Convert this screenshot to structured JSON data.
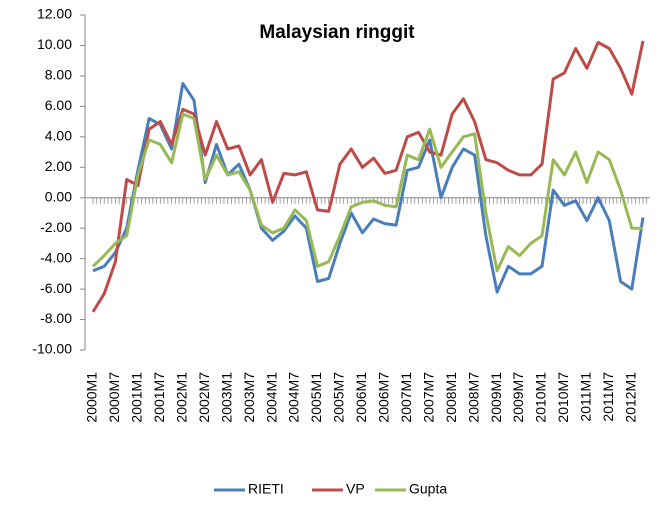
{
  "chart_data": {
    "type": "line",
    "title": "Malaysian ringgit",
    "categories": [
      "2000M1",
      null,
      "2000M7",
      null,
      "2001M1",
      null,
      "2001M7",
      null,
      "2002M1",
      null,
      "2002M7",
      null,
      "2003M1",
      null,
      "2003M7",
      null,
      "2004M1",
      null,
      "2004M7",
      null,
      "2005M1",
      null,
      "2005M7",
      null,
      "2006M1",
      null,
      "2006M7",
      null,
      "2007M1",
      null,
      "2007M7",
      null,
      "2008M1",
      null,
      "2008M7",
      null,
      "2009M1",
      null,
      "2009M7",
      null,
      "2010M1",
      null,
      "2010M7",
      null,
      "2011M1",
      null,
      "2011M7",
      null,
      "2012M1",
      null
    ],
    "series": [
      {
        "name": "RIETI",
        "color": "#4a7ebb",
        "values": [
          -4.8,
          -4.5,
          -3.6,
          -2.0,
          1.8,
          5.2,
          4.8,
          3.2,
          7.5,
          6.4,
          1.0,
          3.5,
          1.5,
          2.2,
          0.5,
          -2.0,
          -2.8,
          -2.2,
          -1.2,
          -2.0,
          -5.5,
          -5.3,
          -3.0,
          -1.0,
          -2.3,
          -1.4,
          -1.7,
          -1.8,
          1.8,
          2.0,
          3.8,
          0.0,
          2.0,
          3.2,
          2.8,
          -2.5,
          -6.2,
          -4.5,
          -5.0,
          -5.0,
          -4.5,
          0.5,
          -0.5,
          -0.2,
          -1.5,
          0.0,
          -1.5,
          -5.5,
          -6.0,
          -1.3
        ]
      },
      {
        "name": "VP",
        "color": "#be4b48",
        "values": [
          -7.5,
          -6.3,
          -4.2,
          1.2,
          0.8,
          4.5,
          5.0,
          3.5,
          5.8,
          5.5,
          2.8,
          5.0,
          3.2,
          3.4,
          1.5,
          2.5,
          -0.3,
          1.6,
          1.5,
          1.7,
          -0.8,
          -0.9,
          2.2,
          3.2,
          2.0,
          2.6,
          1.6,
          1.8,
          4.0,
          4.3,
          3.0,
          2.8,
          5.5,
          6.5,
          5.0,
          2.5,
          2.3,
          1.8,
          1.5,
          1.5,
          2.2,
          7.8,
          8.2,
          9.8,
          8.5,
          10.2,
          9.8,
          8.5,
          6.8,
          10.3
        ]
      },
      {
        "name": "Gupta",
        "color": "#98b954",
        "values": [
          -4.5,
          -3.8,
          -3.0,
          -2.5,
          1.5,
          3.8,
          3.5,
          2.3,
          5.5,
          5.2,
          1.2,
          2.8,
          1.5,
          1.7,
          0.5,
          -1.8,
          -2.3,
          -2.0,
          -0.8,
          -1.5,
          -4.5,
          -4.2,
          -2.5,
          -0.6,
          -0.3,
          -0.2,
          -0.5,
          -0.6,
          2.8,
          2.5,
          4.5,
          2.0,
          3.0,
          4.0,
          4.2,
          -1.0,
          -4.8,
          -3.2,
          -3.8,
          -3.0,
          -2.5,
          2.5,
          1.5,
          3.0,
          1.0,
          3.0,
          2.5,
          0.5,
          -2.0,
          -2.0
        ]
      }
    ],
    "ylim": [
      -10,
      12
    ],
    "yticks": [
      {
        "value": -10,
        "label": "-10.00"
      },
      {
        "value": -8,
        "label": "-8.00"
      },
      {
        "value": -6,
        "label": "-6.00"
      },
      {
        "value": -4,
        "label": "-4.00"
      },
      {
        "value": -2,
        "label": "-2.00"
      },
      {
        "value": 0,
        "label": "0.00"
      },
      {
        "value": 2,
        "label": "2.00"
      },
      {
        "value": 4,
        "label": "4.00"
      },
      {
        "value": 6,
        "label": "6.00"
      },
      {
        "value": 8,
        "label": "8.00"
      },
      {
        "value": 10,
        "label": "10.00"
      },
      {
        "value": 12,
        "label": "12.00"
      }
    ],
    "grid": false,
    "legend": "bottom"
  }
}
